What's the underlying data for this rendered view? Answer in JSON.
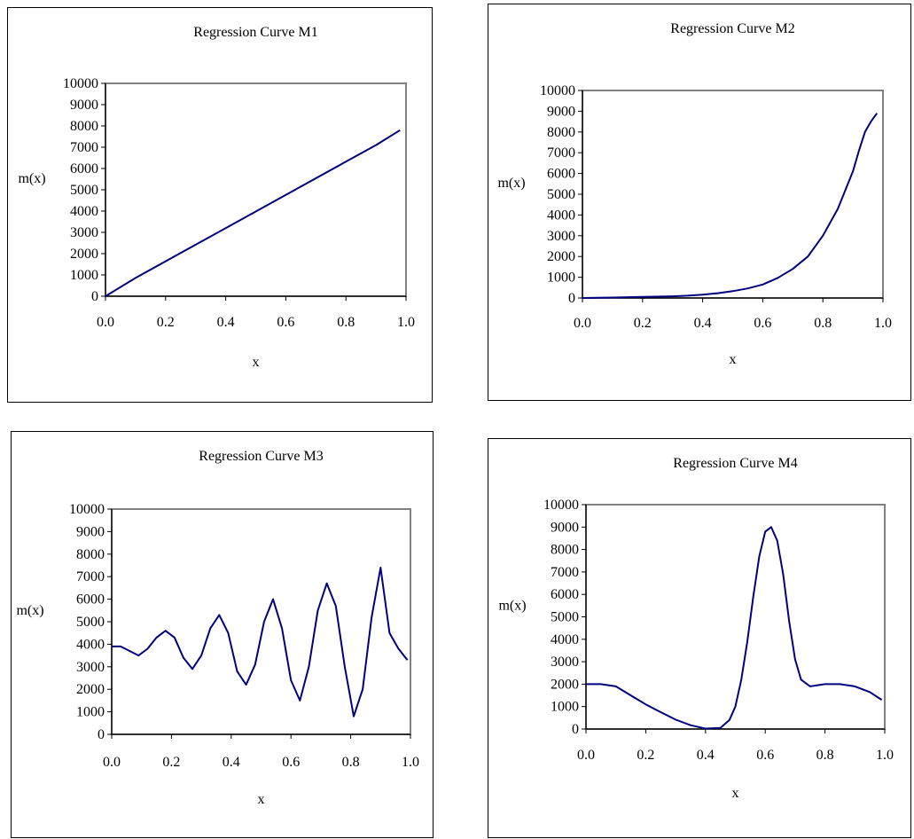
{
  "chart_data": [
    {
      "id": "m1",
      "type": "line",
      "title": "Regression Curve M1",
      "xlabel": "x",
      "ylabel": "m(x)",
      "xlim": [
        0,
        1
      ],
      "ylim": [
        0,
        10000
      ],
      "xticks": [
        "0.0",
        "0.2",
        "0.4",
        "0.6",
        "0.8",
        "1.0"
      ],
      "yticks": [
        "0",
        "1000",
        "2000",
        "3000",
        "4000",
        "5000",
        "6000",
        "7000",
        "8000",
        "9000",
        "10000"
      ],
      "grid": false,
      "series": [
        {
          "color": "#00007f",
          "x": [
            0,
            0.1,
            0.2,
            0.3,
            0.4,
            0.5,
            0.6,
            0.7,
            0.8,
            0.9,
            0.98
          ],
          "y": [
            0,
            860,
            1640,
            2420,
            3200,
            3980,
            4760,
            5540,
            6320,
            7100,
            7800
          ]
        }
      ]
    },
    {
      "id": "m2",
      "type": "line",
      "title": "Regression Curve M2",
      "xlabel": "x",
      "ylabel": "m(x)",
      "xlim": [
        0,
        1
      ],
      "ylim": [
        0,
        10000
      ],
      "xticks": [
        "0.0",
        "0.2",
        "0.4",
        "0.6",
        "0.8",
        "1.0"
      ],
      "yticks": [
        "0",
        "1000",
        "2000",
        "3000",
        "4000",
        "5000",
        "6000",
        "7000",
        "8000",
        "9000",
        "10000"
      ],
      "grid": false,
      "series": [
        {
          "color": "#00007f",
          "x": [
            0,
            0.1,
            0.2,
            0.3,
            0.35,
            0.4,
            0.45,
            0.5,
            0.55,
            0.6,
            0.65,
            0.7,
            0.75,
            0.8,
            0.85,
            0.9,
            0.92,
            0.94,
            0.96,
            0.98
          ],
          "y": [
            0,
            20,
            50,
            80,
            110,
            160,
            230,
            330,
            460,
            650,
            970,
            1400,
            2000,
            3000,
            4300,
            6100,
            7100,
            8000,
            8500,
            8900
          ]
        }
      ]
    },
    {
      "id": "m3",
      "type": "line",
      "title": "Regression Curve M3",
      "xlabel": "x",
      "ylabel": "m(x)",
      "xlim": [
        0,
        1
      ],
      "ylim": [
        0,
        10000
      ],
      "xticks": [
        "0.0",
        "0.2",
        "0.4",
        "0.6",
        "0.8",
        "1.0"
      ],
      "yticks": [
        "0",
        "1000",
        "2000",
        "3000",
        "4000",
        "5000",
        "6000",
        "7000",
        "8000",
        "9000",
        "10000"
      ],
      "grid": false,
      "series": [
        {
          "color": "#00007f",
          "x": [
            0,
            0.03,
            0.06,
            0.09,
            0.12,
            0.15,
            0.18,
            0.21,
            0.24,
            0.27,
            0.3,
            0.33,
            0.36,
            0.39,
            0.42,
            0.45,
            0.48,
            0.51,
            0.54,
            0.57,
            0.6,
            0.63,
            0.66,
            0.69,
            0.72,
            0.75,
            0.78,
            0.81,
            0.84,
            0.87,
            0.9,
            0.93,
            0.96,
            0.99
          ],
          "y": [
            3900,
            3900,
            3700,
            3500,
            3800,
            4300,
            4600,
            4300,
            3400,
            2900,
            3500,
            4700,
            5300,
            4500,
            2800,
            2200,
            3100,
            5000,
            6000,
            4700,
            2400,
            1500,
            3000,
            5500,
            6700,
            5700,
            3000,
            800,
            2000,
            5200,
            7400,
            4500,
            3800,
            3300
          ]
        }
      ]
    },
    {
      "id": "m4",
      "type": "line",
      "title": "Regression Curve M4",
      "xlabel": "x",
      "ylabel": "m(x)",
      "xlim": [
        0,
        1
      ],
      "ylim": [
        0,
        10000
      ],
      "xticks": [
        "0.0",
        "0.2",
        "0.4",
        "0.6",
        "0.8",
        "1.0"
      ],
      "yticks": [
        "0",
        "1000",
        "2000",
        "3000",
        "4000",
        "5000",
        "6000",
        "7000",
        "8000",
        "9000",
        "10000"
      ],
      "grid": false,
      "series": [
        {
          "color": "#00007f",
          "x": [
            0,
            0.05,
            0.1,
            0.15,
            0.2,
            0.25,
            0.3,
            0.35,
            0.4,
            0.45,
            0.48,
            0.5,
            0.52,
            0.54,
            0.56,
            0.58,
            0.6,
            0.62,
            0.64,
            0.66,
            0.68,
            0.7,
            0.72,
            0.75,
            0.8,
            0.85,
            0.9,
            0.95,
            0.99
          ],
          "y": [
            2000,
            2000,
            1900,
            1500,
            1100,
            750,
            420,
            170,
            20,
            50,
            400,
            1000,
            2200,
            3900,
            5900,
            7700,
            8800,
            9000,
            8400,
            6900,
            4800,
            3100,
            2200,
            1900,
            2000,
            2000,
            1900,
            1650,
            1300
          ]
        }
      ]
    }
  ]
}
